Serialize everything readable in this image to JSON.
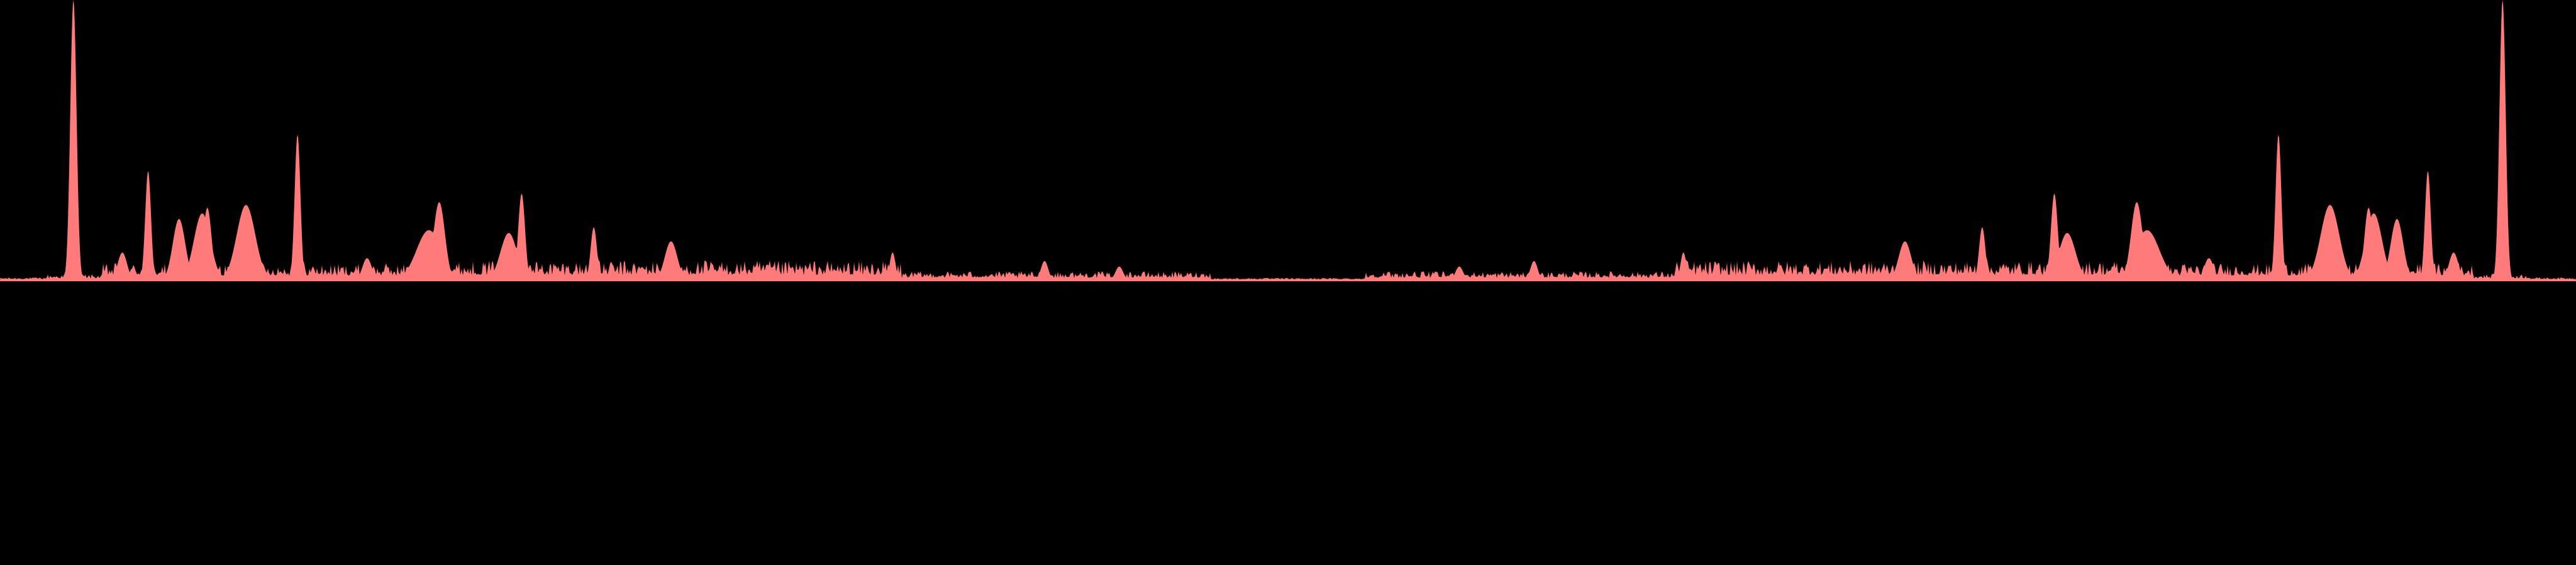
{
  "chart_data": {
    "type": "area",
    "title": "",
    "xlabel": "",
    "ylabel": "",
    "grid": false,
    "legend": "none",
    "colors": {
      "background": "#000000",
      "fill": "#ff7b7b",
      "edge": "#3a1414"
    },
    "x_range": [
      0,
      1
    ],
    "y_range": [
      0,
      1
    ],
    "baseline_level": 0.004,
    "peaks": [
      {
        "x": 0.0285,
        "y": 1.0,
        "width": 0.0012
      },
      {
        "x": 0.0475,
        "y": 0.1,
        "width": 0.0018
      },
      {
        "x": 0.0575,
        "y": 0.39,
        "width": 0.0011
      },
      {
        "x": 0.0695,
        "y": 0.22,
        "width": 0.0024
      },
      {
        "x": 0.0785,
        "y": 0.24,
        "width": 0.0032
      },
      {
        "x": 0.0805,
        "y": 0.26,
        "width": 0.0016
      },
      {
        "x": 0.0955,
        "y": 0.27,
        "width": 0.0036
      },
      {
        "x": 0.1155,
        "y": 0.52,
        "width": 0.0011
      },
      {
        "x": 0.1425,
        "y": 0.08,
        "width": 0.0018
      },
      {
        "x": 0.1665,
        "y": 0.18,
        "width": 0.0048
      },
      {
        "x": 0.1705,
        "y": 0.28,
        "width": 0.0022
      },
      {
        "x": 0.1975,
        "y": 0.17,
        "width": 0.0032
      },
      {
        "x": 0.2025,
        "y": 0.31,
        "width": 0.0013
      },
      {
        "x": 0.2305,
        "y": 0.19,
        "width": 0.0012
      },
      {
        "x": 0.2605,
        "y": 0.14,
        "width": 0.0024
      },
      {
        "x": 0.3465,
        "y": 0.1,
        "width": 0.0011
      },
      {
        "x": 0.4055,
        "y": 0.07,
        "width": 0.0014
      },
      {
        "x": 0.4345,
        "y": 0.05,
        "width": 0.0015
      },
      {
        "x": 0.5665,
        "y": 0.05,
        "width": 0.0015
      },
      {
        "x": 0.5955,
        "y": 0.07,
        "width": 0.0014
      },
      {
        "x": 0.6535,
        "y": 0.1,
        "width": 0.0011
      },
      {
        "x": 0.7395,
        "y": 0.14,
        "width": 0.0024
      },
      {
        "x": 0.7695,
        "y": 0.19,
        "width": 0.0012
      },
      {
        "x": 0.7975,
        "y": 0.31,
        "width": 0.0013
      },
      {
        "x": 0.8025,
        "y": 0.17,
        "width": 0.0032
      },
      {
        "x": 0.8295,
        "y": 0.28,
        "width": 0.0022
      },
      {
        "x": 0.8335,
        "y": 0.18,
        "width": 0.0048
      },
      {
        "x": 0.8575,
        "y": 0.08,
        "width": 0.0018
      },
      {
        "x": 0.8845,
        "y": 0.52,
        "width": 0.0011
      },
      {
        "x": 0.9045,
        "y": 0.27,
        "width": 0.0036
      },
      {
        "x": 0.9195,
        "y": 0.26,
        "width": 0.0016
      },
      {
        "x": 0.9215,
        "y": 0.24,
        "width": 0.0032
      },
      {
        "x": 0.9305,
        "y": 0.22,
        "width": 0.0024
      },
      {
        "x": 0.9425,
        "y": 0.39,
        "width": 0.0011
      },
      {
        "x": 0.9525,
        "y": 0.1,
        "width": 0.0018
      },
      {
        "x": 0.9715,
        "y": 1.0,
        "width": 0.0012
      }
    ],
    "noise_bands": [
      {
        "x_start": 0.0,
        "x_end": 0.018,
        "amplitude": 0.008
      },
      {
        "x_start": 0.018,
        "x_end": 0.04,
        "amplitude": 0.02
      },
      {
        "x_start": 0.04,
        "x_end": 0.16,
        "amplitude": 0.06
      },
      {
        "x_start": 0.16,
        "x_end": 0.27,
        "amplitude": 0.07
      },
      {
        "x_start": 0.27,
        "x_end": 0.35,
        "amplitude": 0.07
      },
      {
        "x_start": 0.35,
        "x_end": 0.47,
        "amplitude": 0.03
      },
      {
        "x_start": 0.47,
        "x_end": 0.53,
        "amplitude": 0.006
      },
      {
        "x_start": 0.53,
        "x_end": 0.65,
        "amplitude": 0.03
      },
      {
        "x_start": 0.65,
        "x_end": 0.73,
        "amplitude": 0.07
      },
      {
        "x_start": 0.73,
        "x_end": 0.84,
        "amplitude": 0.07
      },
      {
        "x_start": 0.84,
        "x_end": 0.96,
        "amplitude": 0.06
      },
      {
        "x_start": 0.96,
        "x_end": 0.982,
        "amplitude": 0.02
      },
      {
        "x_start": 0.982,
        "x_end": 1.0,
        "amplitude": 0.008
      }
    ]
  }
}
